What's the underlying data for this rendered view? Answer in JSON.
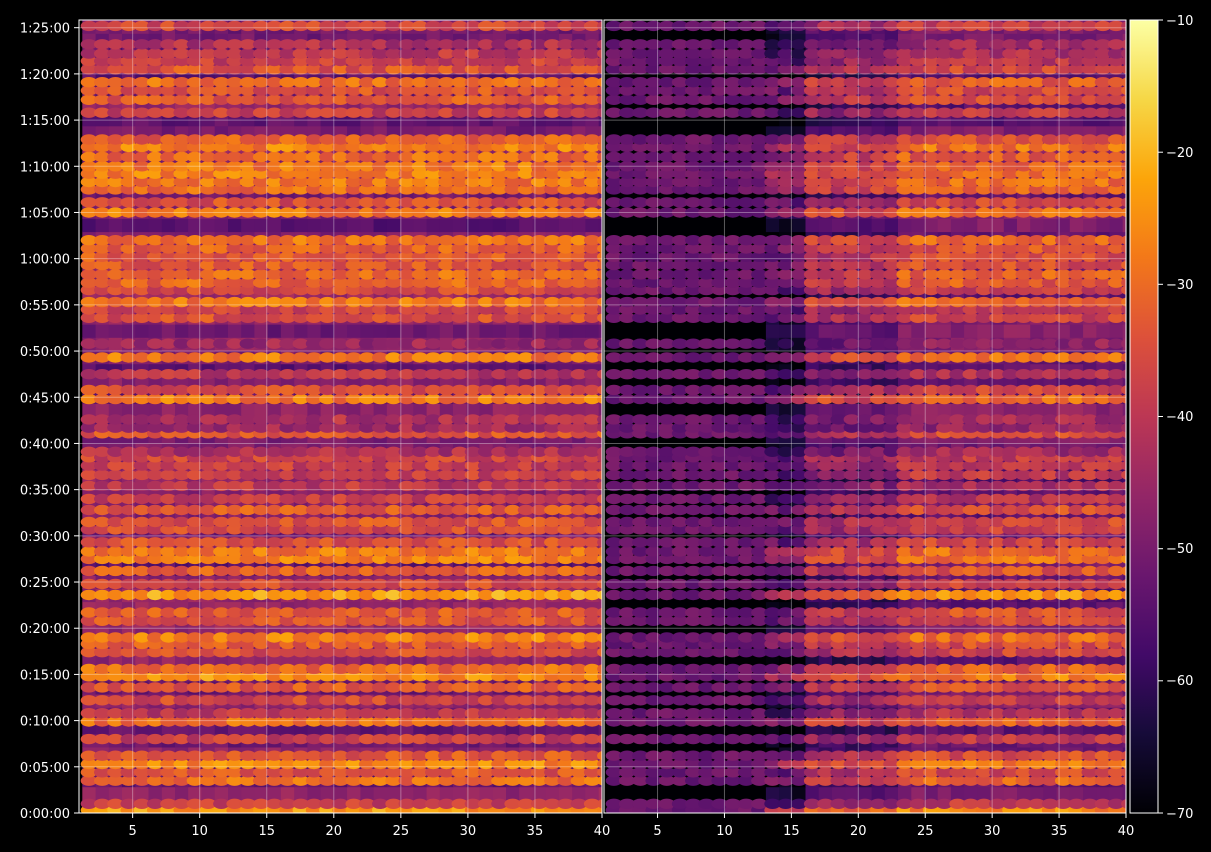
{
  "chart_data": {
    "type": "heatmap",
    "title": "",
    "xlabel": "",
    "ylabel": "",
    "panels": [
      {
        "name": "",
        "xlim": [
          1,
          40
        ],
        "x_ticks": [
          5,
          10,
          15,
          20,
          25,
          30,
          35,
          40
        ]
      },
      {
        "name": "",
        "xlim": [
          1,
          40
        ],
        "x_ticks": [
          5,
          10,
          15,
          20,
          25,
          30,
          35,
          40
        ]
      }
    ],
    "y_ticks": [
      "0:00:00",
      "0:05:00",
      "0:10:00",
      "0:15:00",
      "0:20:00",
      "0:25:00",
      "0:30:00",
      "0:35:00",
      "0:40:00",
      "0:45:00",
      "0:50:00",
      "0:55:00",
      "1:00:00",
      "1:05:00",
      "1:10:00",
      "1:15:00",
      "1:20:00",
      "1:25:00"
    ],
    "y_range_seconds": [
      0,
      5150
    ],
    "grid": true,
    "colormap": "inferno",
    "colorbar": {
      "min": -70,
      "max": -10,
      "ticks": [
        -10,
        -20,
        -30,
        -40,
        -50,
        -60,
        -70
      ]
    },
    "bright_rows_minutes": [
      {
        "t": 0.3,
        "level": -24
      },
      {
        "t": 1.0,
        "level": -38
      },
      {
        "t": 3.5,
        "level": -30
      },
      {
        "t": 4.4,
        "level": -34
      },
      {
        "t": 5.3,
        "level": -26
      },
      {
        "t": 6.2,
        "level": -33
      },
      {
        "t": 8.0,
        "level": -38
      },
      {
        "t": 9.9,
        "level": -30
      },
      {
        "t": 10.8,
        "level": -40
      },
      {
        "t": 12.2,
        "level": -36
      },
      {
        "t": 13.6,
        "level": -33
      },
      {
        "t": 14.8,
        "level": -25
      },
      {
        "t": 15.6,
        "level": -30
      },
      {
        "t": 17.4,
        "level": -35
      },
      {
        "t": 18.3,
        "level": -33
      },
      {
        "t": 19.0,
        "level": -27
      },
      {
        "t": 20.8,
        "level": -34
      },
      {
        "t": 21.7,
        "level": -33
      },
      {
        "t": 23.6,
        "level": -23
      },
      {
        "t": 24.8,
        "level": -36
      },
      {
        "t": 26.2,
        "level": -32
      },
      {
        "t": 27.5,
        "level": -27
      },
      {
        "t": 28.3,
        "level": -28
      },
      {
        "t": 29.3,
        "level": -35
      },
      {
        "t": 30.7,
        "level": -36
      },
      {
        "t": 31.5,
        "level": -34
      },
      {
        "t": 32.8,
        "level": -33
      },
      {
        "t": 34.0,
        "level": -38
      },
      {
        "t": 35.4,
        "level": -40
      },
      {
        "t": 36.6,
        "level": -38
      },
      {
        "t": 37.6,
        "level": -38
      },
      {
        "t": 38.5,
        "level": -37
      },
      {
        "t": 39.1,
        "level": -42
      },
      {
        "t": 41.1,
        "level": -33
      },
      {
        "t": 41.7,
        "level": -44
      },
      {
        "t": 42.6,
        "level": -42
      },
      {
        "t": 44.8,
        "level": -28
      },
      {
        "t": 45.8,
        "level": -35
      },
      {
        "t": 47.5,
        "level": -40
      },
      {
        "t": 49.3,
        "level": -28
      },
      {
        "t": 50.8,
        "level": -45
      },
      {
        "t": 53.6,
        "level": -35
      },
      {
        "t": 54.5,
        "level": -37
      },
      {
        "t": 55.3,
        "level": -28
      },
      {
        "t": 56.6,
        "level": -36
      },
      {
        "t": 57.4,
        "level": -31
      },
      {
        "t": 58.3,
        "level": -30
      },
      {
        "t": 59.3,
        "level": -33
      },
      {
        "t": 60.2,
        "level": -33
      },
      {
        "t": 61.1,
        "level": -32
      },
      {
        "t": 62.0,
        "level": -29
      },
      {
        "t": 65.0,
        "level": -28
      },
      {
        "t": 66.1,
        "level": -35
      },
      {
        "t": 67.5,
        "level": -30
      },
      {
        "t": 68.3,
        "level": -28
      },
      {
        "t": 69.2,
        "level": -27
      },
      {
        "t": 70.0,
        "level": -28
      },
      {
        "t": 71.0,
        "level": -30
      },
      {
        "t": 72.1,
        "level": -27
      },
      {
        "t": 72.9,
        "level": -32
      },
      {
        "t": 75.8,
        "level": -38
      },
      {
        "t": 77.2,
        "level": -33
      },
      {
        "t": 78.2,
        "level": -34
      },
      {
        "t": 79.1,
        "level": -30
      },
      {
        "t": 80.5,
        "level": -34
      },
      {
        "t": 81.4,
        "level": -38
      },
      {
        "t": 82.2,
        "level": -40
      },
      {
        "t": 83.2,
        "level": -42
      },
      {
        "t": 85.2,
        "level": -36
      }
    ]
  },
  "colorbar": {
    "tick_labels": [
      "−10",
      "−20",
      "−30",
      "−40",
      "−50",
      "−60",
      "−70"
    ]
  },
  "colors": {
    "background": "#000000",
    "axis": "#ffffff",
    "grid": "#ffffff",
    "text": "#ffffff"
  }
}
